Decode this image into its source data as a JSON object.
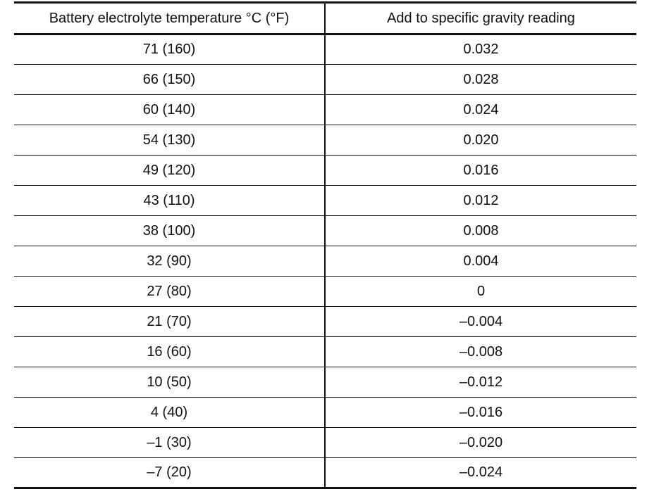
{
  "table": {
    "headers": [
      "Battery electrolyte temperature °C (°F)",
      "Add to specific gravity reading"
    ],
    "rows": [
      [
        "71 (160)",
        "0.032"
      ],
      [
        "66 (150)",
        "0.028"
      ],
      [
        "60 (140)",
        "0.024"
      ],
      [
        "54 (130)",
        "0.020"
      ],
      [
        "49 (120)",
        "0.016"
      ],
      [
        "43 (110)",
        "0.012"
      ],
      [
        "38 (100)",
        "0.008"
      ],
      [
        "32 (90)",
        "0.004"
      ],
      [
        "27 (80)",
        "0"
      ],
      [
        "21 (70)",
        "–0.004"
      ],
      [
        "16 (60)",
        "–0.008"
      ],
      [
        "10 (50)",
        "–0.012"
      ],
      [
        "4 (40)",
        "–0.016"
      ],
      [
        "–1 (30)",
        "–0.020"
      ],
      [
        "–7 (20)",
        "–0.024"
      ]
    ]
  }
}
